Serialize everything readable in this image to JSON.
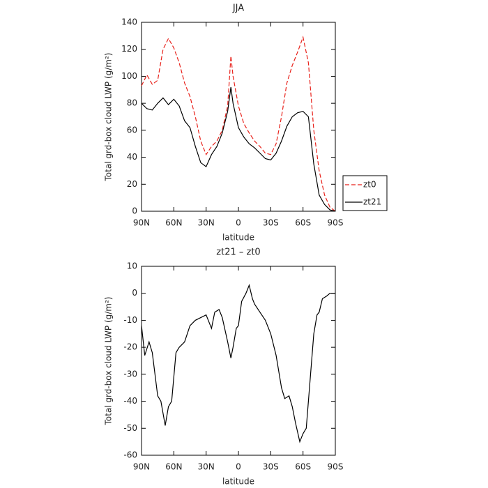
{
  "chart_data": [
    {
      "type": "line",
      "title": "JJA",
      "xlabel": "latitude",
      "ylabel": "Total grd-box cloud LWP (g/m²)",
      "x": [
        90,
        85,
        80,
        75,
        70,
        65,
        60,
        55,
        50,
        45,
        40,
        35,
        30,
        25,
        20,
        15,
        10,
        7,
        5,
        0,
        -5,
        -10,
        -15,
        -20,
        -25,
        -30,
        -35,
        -40,
        -45,
        -50,
        -55,
        -60,
        -65,
        -70,
        -75,
        -80,
        -85,
        -90
      ],
      "series": [
        {
          "name": "zt0",
          "color": "#e8211a",
          "dash": true,
          "values": [
            93,
            101,
            94,
            97,
            120,
            128,
            121,
            110,
            95,
            85,
            70,
            52,
            42,
            48,
            52,
            60,
            78,
            115,
            100,
            78,
            65,
            58,
            52,
            48,
            43,
            42,
            50,
            70,
            95,
            108,
            118,
            129,
            110,
            60,
            30,
            12,
            3,
            0
          ]
        },
        {
          "name": "zt21",
          "color": "#000000",
          "dash": false,
          "values": [
            80,
            76,
            75,
            80,
            84,
            79,
            83,
            78,
            67,
            62,
            48,
            36,
            33,
            42,
            48,
            58,
            74,
            92,
            80,
            62,
            55,
            50,
            47,
            43,
            39,
            38,
            43,
            52,
            63,
            70,
            73,
            74,
            70,
            35,
            12,
            5,
            1,
            0
          ]
        }
      ],
      "xlim": [
        90,
        -90
      ],
      "xticks": [
        {
          "value": 90,
          "label": "90N"
        },
        {
          "value": 60,
          "label": "60N"
        },
        {
          "value": 30,
          "label": "30N"
        },
        0,
        {
          "value": -30,
          "label": "30S"
        },
        {
          "value": -60,
          "label": "60S"
        },
        {
          "value": -90,
          "label": "90S"
        }
      ],
      "ylim": [
        0,
        140
      ],
      "yticks": [
        0,
        20,
        40,
        60,
        80,
        100,
        120,
        140
      ],
      "legend": "right"
    },
    {
      "type": "line",
      "title": "zt21 – zt0",
      "xlabel": "latitude",
      "ylabel": "Total grd-box cloud LWP (g/m²)",
      "x": [
        90,
        87,
        83,
        80,
        75,
        72,
        68,
        65,
        62,
        58,
        55,
        50,
        45,
        40,
        35,
        30,
        25,
        22,
        18,
        15,
        10,
        7,
        5,
        2,
        0,
        -3,
        -7,
        -10,
        -13,
        -15,
        -20,
        -25,
        -30,
        -35,
        -40,
        -43,
        -47,
        -50,
        -53,
        -57,
        -60,
        -63,
        -67,
        -70,
        -73,
        -75,
        -78,
        -82,
        -85,
        -90
      ],
      "values": [
        -12,
        -23,
        -18,
        -22,
        -38,
        -40,
        -49,
        -42,
        -40,
        -22,
        -20,
        -18,
        -12,
        -10,
        -9,
        -8,
        -13,
        -7,
        -6,
        -9,
        -18,
        -24,
        -20,
        -13,
        -12,
        -3,
        0,
        3,
        -2,
        -4,
        -7,
        -10,
        -15,
        -23,
        -35,
        -39,
        -38,
        -42,
        -48,
        -55,
        -52,
        -50,
        -30,
        -15,
        -8,
        -7,
        -2,
        -1,
        0,
        0
      ],
      "color": "#000000",
      "xlim": [
        90,
        -90
      ],
      "xticks": [
        {
          "value": 90,
          "label": "90N"
        },
        {
          "value": 60,
          "label": "60N"
        },
        {
          "value": 30,
          "label": "30N"
        },
        0,
        {
          "value": -30,
          "label": "30S"
        },
        {
          "value": -60,
          "label": "60S"
        },
        {
          "value": -90,
          "label": "90S"
        }
      ],
      "ylim": [
        -60,
        10
      ],
      "yticks": [
        -60,
        -50,
        -40,
        -30,
        -20,
        -10,
        0,
        10
      ]
    }
  ]
}
